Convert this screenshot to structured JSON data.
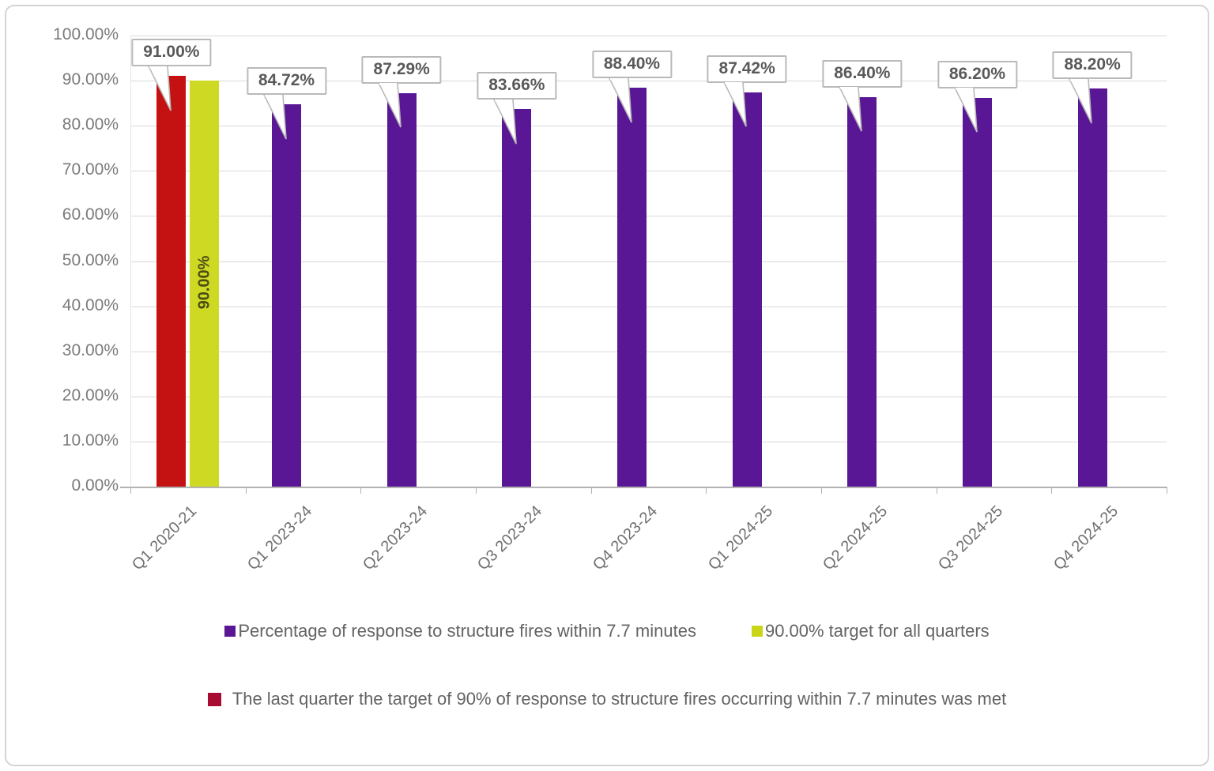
{
  "chart_data": {
    "type": "bar",
    "title": "",
    "categories": [
      "Q1 2020-21",
      "Q1 2023-24",
      "Q2 2023-24",
      "Q3 2023-24",
      "Q4 2023-24",
      "Q1 2024-25",
      "Q2 2024-25",
      "Q3 2024-25",
      "Q4 2024-25"
    ],
    "series": [
      {
        "name": "Percentage of response to structure fires within 7.7 minutes",
        "color": "#5a1795",
        "values": [
          91.0,
          84.72,
          87.29,
          83.66,
          88.4,
          87.42,
          86.4,
          86.2,
          88.2
        ],
        "labels": [
          "91.00%",
          "84.72%",
          "87.29%",
          "83.66%",
          "88.40%",
          "87.42%",
          "86.40%",
          "86.20%",
          "88.20%"
        ],
        "point_colors": {
          "0": "#c41111"
        }
      },
      {
        "name": "90.00% target for all quarters",
        "color": "#cdd923",
        "values": [
          90.0,
          null,
          null,
          null,
          null,
          null,
          null,
          null,
          null
        ],
        "inside_label": "90.00%",
        "inside_label_color": "#4b4b14"
      }
    ],
    "note_series": {
      "name": "The last quarter the target of 90% of response to structure fires occurring within 7.7 minutes was met",
      "color": "#a90c33"
    },
    "ylim": [
      0,
      100
    ],
    "ytick_step": 10,
    "ytick_labels": [
      "100.00%",
      "90.00%",
      "80.00%",
      "70.00%",
      "60.00%",
      "50.00%",
      "40.00%",
      "30.00%",
      "20.00%",
      "10.00%",
      "0.00%"
    ],
    "grid": true,
    "legend_position": "bottom"
  },
  "legend": {
    "row1": [
      {
        "label": "Percentage of response to structure fires within 7.7 minutes",
        "color": "#5a1795"
      },
      {
        "label": "90.00% target for all quarters",
        "color": "#c9d618"
      }
    ],
    "row2": [
      {
        "label": "The last quarter the target of 90% of response to structure fires occurring within 7.7 minutes was met",
        "color": "#a90c33"
      }
    ]
  }
}
